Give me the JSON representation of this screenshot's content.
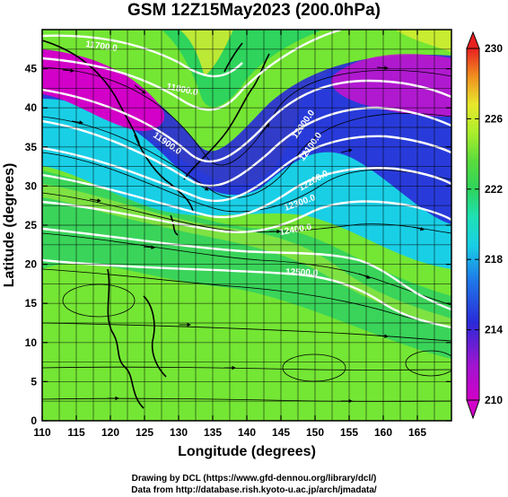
{
  "title": "GSM 12Z15May2023 (200.0hPa)",
  "map": {
    "xlabel": "Longitude (degrees)",
    "ylabel": "Latitude  (degrees)",
    "lon_range": [
      110,
      170
    ],
    "lat_range": [
      0,
      50
    ],
    "lon_ticks": [
      "110",
      "115",
      "120",
      "125",
      "130",
      "135",
      "140",
      "145",
      "150",
      "155",
      "160",
      "165"
    ],
    "lat_ticks": [
      "0",
      "5",
      "10",
      "15",
      "20",
      "25",
      "30",
      "35",
      "40",
      "45"
    ],
    "contour_labels": [
      "11700.0",
      "11800.0",
      "11900.0",
      "12000.0",
      "12100.0",
      "12200.0",
      "12300.0",
      "12400.0",
      "12500.0"
    ],
    "colors": {
      "magenta": "#d200c8",
      "blue": "#2a2ad8",
      "cyan": "#19cfe6",
      "green": "#2ed45c",
      "lime": "#86ec2c",
      "yellow": "#e0ee2c"
    }
  },
  "colorbar": {
    "ticks": [
      "210",
      "214",
      "218",
      "222",
      "226",
      "230"
    ],
    "range": [
      210,
      230
    ]
  },
  "footer": {
    "credit": "Drawing by DCL (https://www.gfd-dennou.org/library/dcl/)",
    "source": "Data from http://database.rish.kyoto-u.ac.jp/arch/jmadata/"
  }
}
